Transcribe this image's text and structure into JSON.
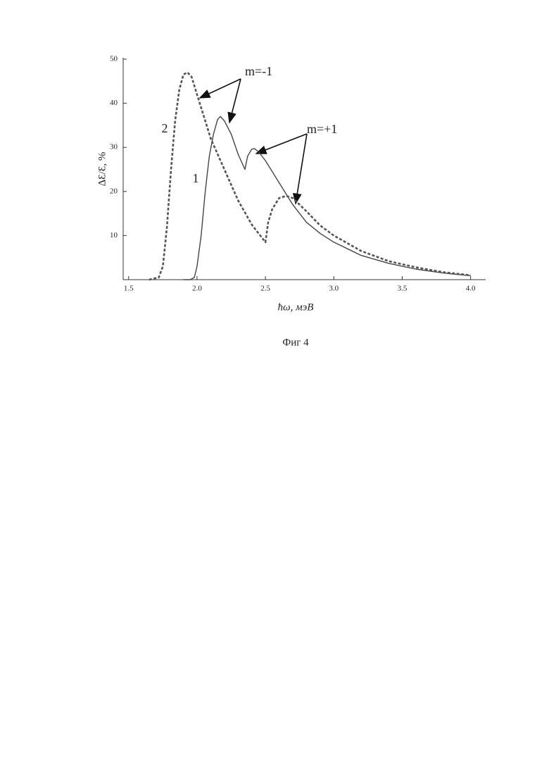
{
  "chart_data": {
    "type": "line",
    "xlabel": "ħω, мэВ",
    "ylabel": "ΔƐ/Ɛ, %",
    "caption": "Фиг 4",
    "annotations": [
      "m=-1",
      "m=+1"
    ],
    "xlim": [
      1.46,
      4.11
    ],
    "ylim": [
      0,
      50
    ],
    "xticks": [
      1.5,
      {
        "value": 2,
        "label": "2.0"
      },
      2.5,
      {
        "value": 3,
        "label": "3.0"
      },
      3.5,
      {
        "value": 4,
        "label": "4.0"
      }
    ],
    "yticks": [
      10,
      20,
      30,
      40,
      50
    ],
    "series": [
      {
        "name": "1",
        "color": "#444",
        "dash": false,
        "x": [
          1.9,
          1.95,
          1.98,
          2.0,
          2.03,
          2.06,
          2.09,
          2.12,
          2.15,
          2.17,
          2.2,
          2.25,
          2.3,
          2.35,
          2.37,
          2.4,
          2.42,
          2.45,
          2.5,
          2.6,
          2.7,
          2.8,
          2.9,
          3.0,
          3.2,
          3.4,
          3.6,
          3.8,
          4.0
        ],
        "values": [
          0,
          0,
          0.5,
          3,
          10,
          20,
          28,
          33,
          36.3,
          37,
          36,
          33,
          28.5,
          25,
          28,
          29.6,
          29.7,
          29,
          27,
          22,
          17,
          13,
          10.5,
          8.5,
          5.5,
          3.7,
          2.4,
          1.5,
          0.9
        ]
      },
      {
        "name": "2",
        "color": "#555",
        "dash": true,
        "x": [
          1.65,
          1.72,
          1.75,
          1.78,
          1.81,
          1.84,
          1.87,
          1.9,
          1.93,
          1.96,
          2.0,
          2.05,
          2.1,
          2.2,
          2.3,
          2.4,
          2.5,
          2.52,
          2.55,
          2.6,
          2.65,
          2.7,
          2.8,
          2.9,
          3.0,
          3.2,
          3.4,
          3.6,
          3.8,
          4.0
        ],
        "values": [
          0,
          0.5,
          3,
          12,
          25,
          36,
          43,
          46.5,
          47,
          46,
          42,
          37,
          32,
          25,
          18,
          12.5,
          8.5,
          13,
          16,
          18.5,
          19,
          18.5,
          15.5,
          12.3,
          10,
          6.5,
          4.2,
          2.8,
          1.7,
          1.0
        ]
      }
    ]
  }
}
